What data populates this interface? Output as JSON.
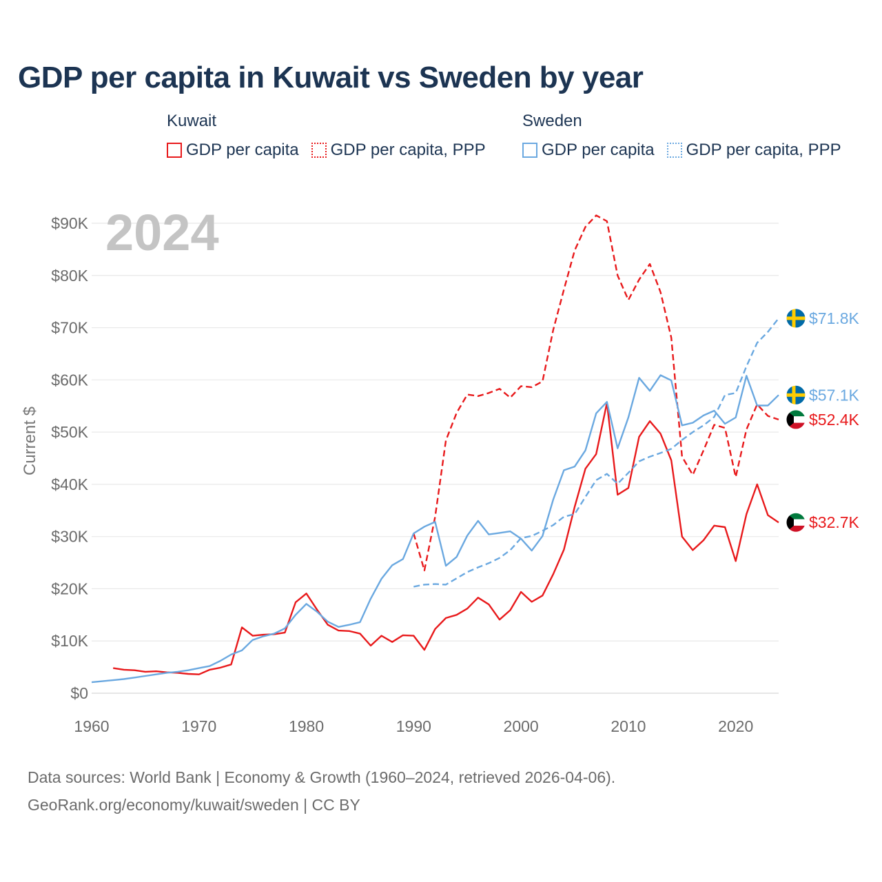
{
  "title": "GDP per capita in Kuwait vs Sweden by year",
  "legend": {
    "kuwait": {
      "country": "Kuwait",
      "gdp": "GDP per capita",
      "ppp": "GDP per capita, PPP"
    },
    "sweden": {
      "country": "Sweden",
      "gdp": "GDP per capita",
      "ppp": "GDP per capita, PPP"
    }
  },
  "year_label": "2024",
  "footer": {
    "line1": "Data sources: World Bank | Economy & Growth (1960–2024, retrieved 2026-04-06).",
    "line2": "GeoRank.org/economy/kuwait/sweden | CC BY"
  },
  "colors": {
    "kuwait": "#e8191b",
    "sweden": "#6aa8e0",
    "title": "#1c3452",
    "grid": "#e6e6e6",
    "year": "#c4c4c4"
  },
  "chart_data": {
    "type": "line",
    "title": "GDP per capita in Kuwait vs Sweden by year",
    "xlabel": "",
    "ylabel": "Current $",
    "xlim": [
      1960,
      2024
    ],
    "ylim": [
      0,
      90000
    ],
    "x_ticks": [
      1960,
      1970,
      1980,
      1990,
      2000,
      2010,
      2020
    ],
    "x_tick_labels": [
      "1960",
      "1970",
      "1980",
      "1990",
      "2000",
      "2010",
      "2020"
    ],
    "y_ticks": [
      0,
      10000,
      20000,
      30000,
      40000,
      50000,
      60000,
      70000,
      80000,
      90000
    ],
    "y_tick_labels": [
      "$0",
      "$10K",
      "$20K",
      "$30K",
      "$40K",
      "$50K",
      "$60K",
      "$70K",
      "$80K",
      "$90K"
    ],
    "grid": true,
    "series": [
      {
        "name": "Kuwait GDP per capita",
        "country": "Kuwait",
        "style": "solid",
        "color": "#e8191b",
        "end_label": "$32.7K",
        "flag": "kuwait",
        "x": [
          1962,
          1963,
          1964,
          1965,
          1966,
          1967,
          1968,
          1969,
          1970,
          1971,
          1972,
          1973,
          1974,
          1975,
          1976,
          1977,
          1978,
          1979,
          1980,
          1981,
          1982,
          1983,
          1984,
          1985,
          1986,
          1987,
          1988,
          1989,
          1990,
          1991,
          1992,
          1993,
          1994,
          1995,
          1996,
          1997,
          1998,
          1999,
          2000,
          2001,
          2002,
          2003,
          2004,
          2005,
          2006,
          2007,
          2008,
          2009,
          2010,
          2011,
          2012,
          2013,
          2014,
          2015,
          2016,
          2017,
          2018,
          2019,
          2020,
          2021,
          2022,
          2023,
          2024
        ],
        "values": [
          4800,
          4500,
          4400,
          4100,
          4200,
          4000,
          3900,
          3700,
          3600,
          4500,
          4900,
          5500,
          12600,
          11000,
          11200,
          11300,
          11600,
          17400,
          19100,
          16000,
          13100,
          12000,
          11900,
          11400,
          9100,
          11000,
          9800,
          11100,
          11000,
          8300,
          12300,
          14400,
          15000,
          16200,
          18300,
          17000,
          14100,
          15900,
          19400,
          17500,
          18700,
          22800,
          27500,
          35700,
          43000,
          45800,
          55600,
          38000,
          39300,
          49100,
          52100,
          49700,
          44600,
          30000,
          27400,
          29300,
          32100,
          31800,
          25300,
          34300,
          40000,
          34100,
          32700
        ]
      },
      {
        "name": "Kuwait GDP per capita, PPP",
        "country": "Kuwait",
        "style": "dashed",
        "color": "#e8191b",
        "end_label": "$52.4K",
        "flag": "kuwait",
        "x": [
          1990,
          1991,
          1992,
          1993,
          1994,
          1995,
          1996,
          1997,
          1998,
          1999,
          2000,
          2001,
          2002,
          2003,
          2004,
          2005,
          2006,
          2007,
          2008,
          2009,
          2010,
          2011,
          2012,
          2013,
          2014,
          2015,
          2016,
          2017,
          2018,
          2019,
          2020,
          2021,
          2022,
          2023,
          2024
        ],
        "values": [
          30600,
          23500,
          33800,
          48400,
          53700,
          57200,
          56900,
          57500,
          58300,
          56600,
          58800,
          58600,
          59700,
          69600,
          77300,
          84800,
          89300,
          91500,
          90400,
          80000,
          75300,
          79200,
          82200,
          76800,
          68100,
          45300,
          41800,
          46500,
          51400,
          50800,
          41400,
          50500,
          55300,
          53100,
          52400
        ]
      },
      {
        "name": "Sweden GDP per capita",
        "country": "Sweden",
        "style": "solid",
        "color": "#6aa8e0",
        "end_label": "$57.1K",
        "flag": "sweden",
        "x": [
          1960,
          1961,
          1962,
          1963,
          1964,
          1965,
          1966,
          1967,
          1968,
          1969,
          1970,
          1971,
          1972,
          1973,
          1974,
          1975,
          1976,
          1977,
          1978,
          1979,
          1980,
          1981,
          1982,
          1983,
          1984,
          1985,
          1986,
          1987,
          1988,
          1989,
          1990,
          1991,
          1992,
          1993,
          1994,
          1995,
          1996,
          1997,
          1998,
          1999,
          2000,
          2001,
          2002,
          2003,
          2004,
          2005,
          2006,
          2007,
          2008,
          2009,
          2010,
          2011,
          2012,
          2013,
          2014,
          2015,
          2016,
          2017,
          2018,
          2019,
          2020,
          2021,
          2022,
          2023,
          2024
        ],
        "values": [
          2100,
          2300,
          2500,
          2700,
          3000,
          3300,
          3600,
          3900,
          4100,
          4400,
          4800,
          5200,
          6200,
          7400,
          8200,
          10200,
          10900,
          11400,
          12400,
          15000,
          17100,
          15600,
          13700,
          12700,
          13100,
          13600,
          18100,
          21900,
          24500,
          25700,
          30600,
          31900,
          32800,
          24400,
          26100,
          30200,
          33000,
          30400,
          30700,
          31000,
          29600,
          27300,
          30100,
          37100,
          42700,
          43400,
          46500,
          53600,
          55800,
          46900,
          52800,
          60400,
          57900,
          60900,
          59900,
          51300,
          51800,
          53200,
          54100,
          51600,
          52800,
          60800,
          55100,
          55100,
          57100
        ]
      },
      {
        "name": "Sweden GDP per capita, PPP",
        "country": "Sweden",
        "style": "dashed",
        "color": "#6aa8e0",
        "end_label": "$71.8K",
        "flag": "sweden",
        "x": [
          1990,
          1991,
          1992,
          1993,
          1994,
          1995,
          1996,
          1997,
          1998,
          1999,
          2000,
          2001,
          2002,
          2003,
          2004,
          2005,
          2006,
          2007,
          2008,
          2009,
          2010,
          2011,
          2012,
          2013,
          2014,
          2015,
          2016,
          2017,
          2018,
          2019,
          2020,
          2021,
          2022,
          2023,
          2024
        ],
        "values": [
          20400,
          20800,
          20900,
          20800,
          22000,
          23200,
          24100,
          24900,
          25900,
          27400,
          29700,
          30100,
          31100,
          32200,
          33800,
          34300,
          37600,
          40800,
          42000,
          40100,
          42200,
          44400,
          45300,
          46000,
          46800,
          48500,
          50000,
          51300,
          52900,
          57100,
          57500,
          62600,
          67100,
          69200,
          71800
        ]
      }
    ]
  }
}
